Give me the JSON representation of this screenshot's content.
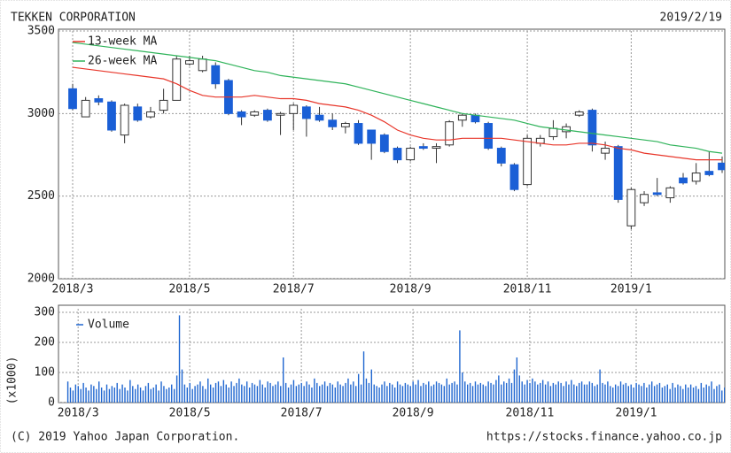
{
  "chart_data": [
    {
      "type": "candlestick",
      "title": "TEKKEN CORPORATION",
      "subtitle": "2019/2/19",
      "categories": [
        "2018/3",
        null,
        null,
        null,
        null,
        null,
        null,
        null,
        null,
        "2018/5",
        null,
        null,
        null,
        null,
        null,
        null,
        null,
        "2018/7",
        null,
        null,
        null,
        null,
        null,
        null,
        null,
        null,
        "2018/9",
        null,
        null,
        null,
        null,
        null,
        null,
        null,
        null,
        "2018/11",
        null,
        null,
        null,
        null,
        null,
        null,
        null,
        "2019/1",
        null,
        null,
        null,
        null,
        null,
        null,
        null
      ],
      "open": [
        3150,
        2980,
        3090,
        3070,
        2870,
        3040,
        2980,
        3020,
        3080,
        3300,
        3260,
        3290,
        3200,
        3010,
        2990,
        3020,
        2990,
        3000,
        3040,
        2990,
        2960,
        2920,
        2940,
        2900,
        2870,
        2790,
        2720,
        2800,
        2790,
        2810,
        2960,
        2990,
        2940,
        2790,
        2690,
        2570,
        2820,
        2860,
        2890,
        2990,
        3020,
        2760,
        2800,
        2320,
        2460,
        2520,
        2490,
        2610,
        2590,
        2650,
        2700
      ],
      "high": [
        3180,
        3100,
        3110,
        3080,
        3060,
        3060,
        3040,
        3150,
        3350,
        3350,
        3350,
        3310,
        3210,
        3020,
        3020,
        3030,
        3010,
        3060,
        3050,
        3040,
        3000,
        2950,
        2960,
        2900,
        2880,
        2800,
        2800,
        2820,
        2820,
        2960,
        3000,
        3000,
        2950,
        2800,
        2700,
        2870,
        2870,
        2960,
        2940,
        3020,
        3030,
        2830,
        2810,
        2550,
        2530,
        2610,
        2560,
        2640,
        2700,
        2770,
        2740
      ],
      "low": [
        3020,
        2980,
        3050,
        2890,
        2820,
        2950,
        2970,
        3000,
        3080,
        3290,
        3250,
        3150,
        2990,
        2930,
        2980,
        2950,
        2870,
        2900,
        2860,
        2950,
        2900,
        2880,
        2810,
        2720,
        2760,
        2700,
        2710,
        2780,
        2700,
        2800,
        2920,
        2940,
        2780,
        2680,
        2530,
        2560,
        2800,
        2840,
        2850,
        2980,
        2770,
        2720,
        2460,
        2300,
        2440,
        2500,
        2460,
        2570,
        2570,
        2620,
        2640
      ],
      "close": [
        3030,
        3080,
        3070,
        2900,
        3050,
        2960,
        3010,
        3080,
        3330,
        3320,
        3330,
        3180,
        3000,
        2980,
        3010,
        2960,
        3000,
        3050,
        2970,
        2960,
        2920,
        2940,
        2820,
        2820,
        2770,
        2720,
        2790,
        2790,
        2800,
        2950,
        2990,
        2950,
        2790,
        2700,
        2540,
        2850,
        2850,
        2910,
        2920,
        3010,
        2810,
        2790,
        2480,
        2540,
        2510,
        2510,
        2550,
        2580,
        2640,
        2630,
        2660
      ],
      "up_color": "#ffffff",
      "down_color": "#1a5fd6",
      "lines": [
        {
          "name": "13-week MA",
          "color": "#e8362a",
          "values": [
            3280,
            3270,
            3260,
            3250,
            3240,
            3230,
            3220,
            3210,
            3180,
            3140,
            3110,
            3100,
            3100,
            3100,
            3110,
            3100,
            3090,
            3090,
            3080,
            3060,
            3050,
            3040,
            3020,
            2990,
            2950,
            2900,
            2870,
            2850,
            2840,
            2840,
            2850,
            2850,
            2850,
            2850,
            2840,
            2830,
            2820,
            2810,
            2810,
            2820,
            2820,
            2810,
            2790,
            2780,
            2760,
            2750,
            2740,
            2730,
            2720,
            2720,
            2720
          ]
        },
        {
          "name": "26-week MA",
          "color": "#2fb35a",
          "values": [
            3430,
            3420,
            3410,
            3400,
            3390,
            3380,
            3370,
            3360,
            3350,
            3340,
            3330,
            3320,
            3300,
            3280,
            3260,
            3250,
            3230,
            3220,
            3210,
            3200,
            3190,
            3180,
            3160,
            3140,
            3120,
            3100,
            3080,
            3060,
            3040,
            3020,
            3000,
            2990,
            2980,
            2970,
            2960,
            2940,
            2920,
            2910,
            2900,
            2890,
            2880,
            2870,
            2860,
            2850,
            2840,
            2830,
            2810,
            2800,
            2790,
            2770,
            2760
          ]
        }
      ],
      "ylim": [
        2000,
        3500
      ],
      "yticks": [
        2000,
        2500,
        3000,
        3500
      ],
      "grid": true
    },
    {
      "type": "bar",
      "categories": [
        null,
        null,
        null,
        null,
        "2018/3",
        null,
        null,
        null,
        null,
        null,
        null,
        null,
        null,
        null,
        null,
        null,
        null,
        null,
        null,
        null,
        null,
        null,
        null,
        null,
        null,
        null,
        null,
        null,
        null,
        null,
        null,
        null,
        null,
        null,
        null,
        null,
        null,
        null,
        null,
        null,
        null,
        null,
        null,
        null,
        null,
        null,
        null,
        "2018/5",
        null,
        null,
        null,
        null,
        null,
        null,
        null,
        null,
        null,
        null,
        null,
        null,
        null,
        null,
        null,
        null,
        null,
        null,
        null,
        null,
        null,
        null,
        null,
        null,
        null,
        null,
        null,
        null,
        null,
        null,
        null,
        null,
        null,
        null,
        null,
        null,
        null,
        null,
        null,
        null,
        null,
        null,
        "2018/7",
        null,
        null,
        null,
        null,
        null,
        null,
        null,
        null,
        null,
        null,
        null,
        null,
        null,
        null,
        null,
        null,
        null,
        null,
        null,
        null,
        null,
        null,
        null,
        null,
        null,
        null,
        null,
        null,
        null,
        null,
        null,
        null,
        null,
        null,
        null,
        null,
        null,
        null,
        null,
        null,
        null,
        null,
        "2018/9",
        null,
        null,
        null,
        null,
        null,
        null,
        null,
        null,
        null,
        null,
        null,
        null,
        null,
        null,
        null,
        null,
        null,
        null,
        null,
        null,
        null,
        null,
        null,
        null,
        null,
        null,
        null,
        null,
        null,
        null,
        null,
        null,
        null,
        null,
        null,
        null,
        null,
        null,
        null,
        null,
        null,
        null,
        null,
        null,
        "2018/11",
        null,
        null,
        null,
        null,
        null,
        null,
        null,
        null,
        null,
        null,
        null,
        null,
        null,
        null,
        null,
        null,
        null,
        null,
        null,
        null,
        null,
        null,
        null,
        null,
        null,
        null,
        null,
        null,
        null,
        null,
        null,
        null,
        null,
        null,
        null,
        null,
        null,
        null,
        null,
        null,
        "2019/1",
        null,
        null,
        null,
        null,
        null,
        null,
        null,
        null,
        null,
        null,
        null,
        null,
        null,
        null,
        null,
        null,
        null,
        null,
        null,
        null,
        null,
        null,
        null,
        null,
        null,
        null,
        null,
        null,
        null,
        null,
        null,
        null,
        null,
        null,
        null
      ],
      "series": [
        {
          "name": "Volume",
          "color": "#1f66d0",
          "values": [
            70,
            50,
            40,
            60,
            55,
            45,
            65,
            50,
            40,
            60,
            55,
            45,
            70,
            50,
            40,
            60,
            45,
            55,
            50,
            65,
            45,
            60,
            50,
            40,
            75,
            55,
            45,
            60,
            50,
            40,
            55,
            65,
            45,
            50,
            60,
            40,
            70,
            55,
            45,
            50,
            60,
            45,
            90,
            290,
            110,
            60,
            50,
            65,
            45,
            55,
            60,
            70,
            55,
            45,
            80,
            60,
            50,
            65,
            70,
            55,
            75,
            60,
            50,
            70,
            55,
            65,
            80,
            60,
            55,
            70,
            50,
            65,
            60,
            55,
            75,
            60,
            50,
            70,
            65,
            55,
            60,
            70,
            55,
            150,
            65,
            50,
            60,
            75,
            55,
            60,
            65,
            55,
            70,
            60,
            50,
            80,
            65,
            55,
            60,
            70,
            55,
            65,
            60,
            50,
            70,
            60,
            55,
            65,
            80,
            60,
            70,
            55,
            95,
            60,
            170,
            80,
            65,
            110,
            60,
            55,
            50,
            60,
            70,
            55,
            65,
            60,
            50,
            70,
            60,
            55,
            65,
            60,
            55,
            70,
            60,
            75,
            55,
            65,
            60,
            70,
            55,
            60,
            70,
            65,
            60,
            55,
            80,
            60,
            65,
            70,
            60,
            240,
            100,
            70,
            60,
            65,
            55,
            70,
            60,
            65,
            60,
            55,
            70,
            65,
            60,
            75,
            90,
            60,
            70,
            65,
            80,
            65,
            110,
            150,
            90,
            70,
            60,
            75,
            65,
            80,
            70,
            60,
            65,
            75,
            60,
            70,
            55,
            65,
            60,
            70,
            65,
            55,
            70,
            60,
            75,
            60,
            55,
            65,
            70,
            60,
            60,
            70,
            65,
            55,
            60,
            110,
            65,
            60,
            70,
            55,
            50,
            60,
            55,
            70,
            60,
            65,
            55,
            60,
            50,
            65,
            60,
            55,
            65,
            50,
            60,
            70,
            55,
            60,
            65,
            50,
            55,
            60,
            45,
            65,
            50,
            60,
            55,
            45,
            60,
            50,
            60,
            50,
            55,
            45,
            65,
            50,
            60,
            55,
            70,
            45,
            55,
            60,
            40,
            50,
            45
          ]
        }
      ],
      "ylabel": "(x1000)",
      "ylim": [
        0,
        300
      ],
      "yticks": [
        0,
        100,
        200,
        300
      ],
      "grid": true
    }
  ],
  "footer": {
    "left": "(C) 2019 Yahoo Japan Corporation.",
    "right": "https://stocks.finance.yahoo.co.jp"
  }
}
